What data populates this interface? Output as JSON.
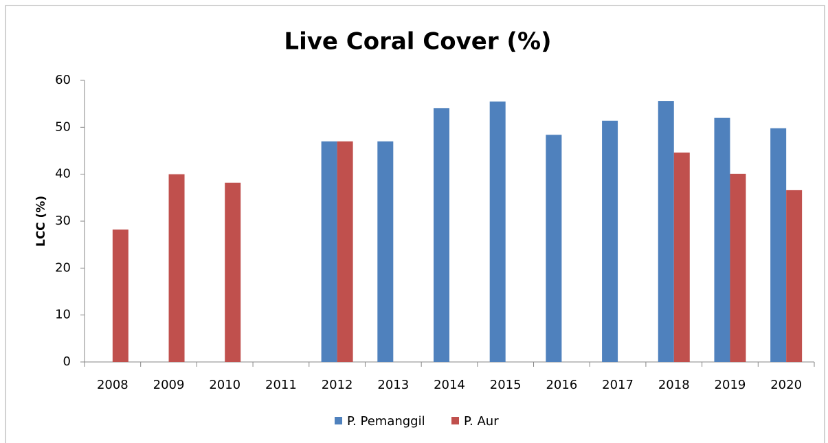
{
  "chart_data": {
    "type": "bar",
    "title": "Live Coral Cover (%)",
    "y_label": "LCC (%)",
    "categories": [
      "2008",
      "2009",
      "2010",
      "2011",
      "2012",
      "2013",
      "2014",
      "2015",
      "2016",
      "2017",
      "2018",
      "2019",
      "2020"
    ],
    "series": [
      {
        "name": "P. Pemanggil",
        "color": "#4f81bd",
        "values": [
          null,
          null,
          null,
          null,
          47.0,
          47.0,
          54.1,
          55.5,
          48.4,
          51.4,
          55.6,
          52.0,
          49.8
        ]
      },
      {
        "name": "P. Aur",
        "color": "#c0504d",
        "values": [
          28.2,
          40.0,
          38.2,
          null,
          47.0,
          null,
          null,
          null,
          null,
          null,
          44.6,
          40.1,
          36.6
        ]
      }
    ],
    "ylim": [
      0,
      60
    ],
    "yticks": [
      0,
      10,
      20,
      30,
      40,
      50,
      60
    ],
    "grid": false,
    "legend": "bottom"
  }
}
